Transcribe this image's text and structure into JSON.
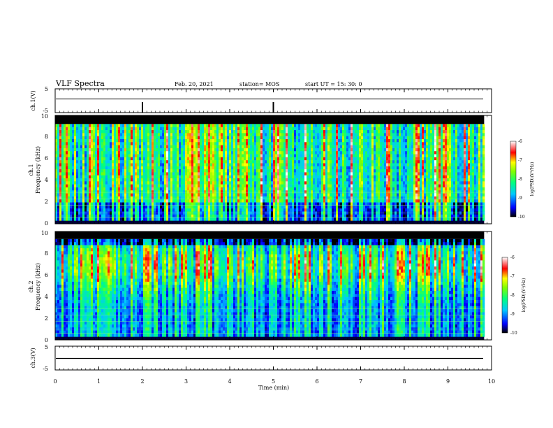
{
  "header": {
    "title": "VLF Spectra",
    "date": "Feb. 20, 2021",
    "station": "station= MOS",
    "start": "start  UT =   15: 30: 0"
  },
  "chart_data": {
    "type": "heatmap",
    "xlabel": "Time  (min)",
    "xlim": [
      0,
      10
    ],
    "xticks": [
      "0",
      "1",
      "2",
      "3",
      "4",
      "5",
      "6",
      "7",
      "8",
      "9",
      "10"
    ],
    "data_end_min": 9.83,
    "panels": [
      {
        "kind": "waveform",
        "ylabel": "ch.1(V)",
        "ylim": [
          -5,
          5
        ],
        "yticks": [
          "5",
          "-5"
        ],
        "baseline_v": 0
      },
      {
        "kind": "spectrogram",
        "ylabel_channel": "ch.1",
        "ylabel": "Frequency  (kHz)",
        "ylim": [
          0,
          10
        ],
        "yticks": [
          "0",
          "2",
          "4",
          "6",
          "8",
          "10"
        ],
        "band_khz": [
          0.3,
          9.2
        ],
        "colorbar": {
          "label": "log(PSD)(V²/Hz)",
          "range": [
            -10,
            -6
          ],
          "ticks": [
            "-6",
            "-7",
            "-8",
            "-9",
            "-10"
          ]
        }
      },
      {
        "kind": "spectrogram",
        "ylabel_channel": "ch.2",
        "ylabel": "Frequency  (kHz)",
        "ylim": [
          0,
          10
        ],
        "yticks": [
          "0",
          "2",
          "4",
          "6",
          "8",
          "10"
        ],
        "band_khz": [
          0.3,
          9.3
        ],
        "colorbar": {
          "label": "log(PSD)(V²/Hz)",
          "range": [
            -10,
            -6
          ],
          "ticks": [
            "-6",
            "-7",
            "-8",
            "-9",
            "-10"
          ]
        }
      },
      {
        "kind": "waveform",
        "ylabel": "ch.3(V)",
        "ylim": [
          -5,
          5
        ],
        "yticks": [
          "5",
          "-5"
        ],
        "baseline_v": 0
      }
    ]
  }
}
